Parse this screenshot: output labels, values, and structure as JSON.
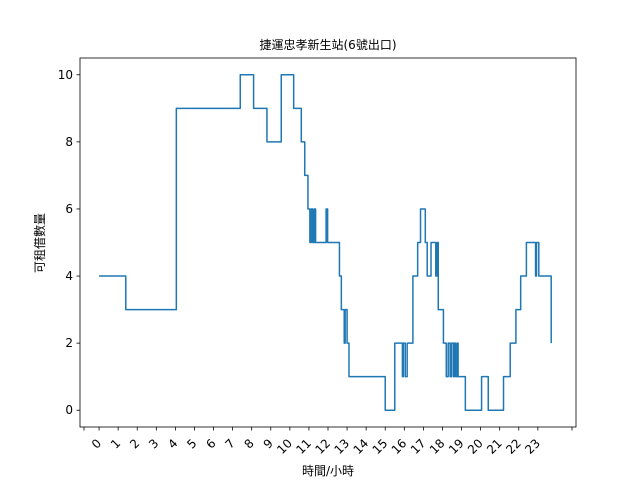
{
  "chart_data": {
    "type": "line",
    "title": "捷運忠孝新生站(6號出口)",
    "xlabel": "時間/小時",
    "ylabel": "可租借數量",
    "xlim": [
      -1,
      25
    ],
    "ylim": [
      -0.5,
      10.5
    ],
    "x_ticks": [
      0,
      1,
      2,
      3,
      4,
      5,
      6,
      7,
      8,
      9,
      10,
      11,
      12,
      13,
      14,
      15,
      16,
      17,
      18,
      19,
      20,
      21,
      22,
      23
    ],
    "x_tick_labels": [
      "0",
      "1",
      "2",
      "3",
      "4",
      "5",
      "6",
      "7",
      "8",
      "9",
      "10",
      "11",
      "12",
      "13",
      "14",
      "15",
      "16",
      "17",
      "18",
      "19",
      "20",
      "21",
      "22",
      "23"
    ],
    "y_ticks": [
      0,
      2,
      4,
      6,
      8,
      10
    ],
    "y_tick_labels": [
      "0",
      "2",
      "4",
      "6",
      "8",
      "10"
    ],
    "grid": false,
    "series": [
      {
        "color": "#1f77b4",
        "x": [
          0,
          1.4,
          1.4,
          4.05,
          4.05,
          7.4,
          7.4,
          8.1,
          8.1,
          8.8,
          8.8,
          9.55,
          9.55,
          10.2,
          10.2,
          10.6,
          10.6,
          10.78,
          10.78,
          10.95,
          10.95,
          11.05,
          11.05,
          11.12,
          11.12,
          11.2,
          11.2,
          11.28,
          11.28,
          11.35,
          11.35,
          11.45,
          11.45,
          11.9,
          11.9,
          11.98,
          11.98,
          12.05,
          12.05,
          12.6,
          12.6,
          12.7,
          12.7,
          12.85,
          12.85,
          12.9,
          12.9,
          13.0,
          13.0,
          13.1,
          13.1,
          15.0,
          15.0,
          15.5,
          15.5,
          15.9,
          15.9,
          15.95,
          15.95,
          16.05,
          16.05,
          16.15,
          16.15,
          16.45,
          16.45,
          16.7,
          16.7,
          16.85,
          16.85,
          17.1,
          17.1,
          17.2,
          17.2,
          17.4,
          17.4,
          17.65,
          17.65,
          17.72,
          17.72,
          17.78,
          17.78,
          18.05,
          18.05,
          18.2,
          18.2,
          18.3,
          18.3,
          18.4,
          18.4,
          18.48,
          18.48,
          18.58,
          18.58,
          18.63,
          18.63,
          18.7,
          18.7,
          18.78,
          18.78,
          18.82,
          18.82,
          19.2,
          19.2,
          20.05,
          20.05,
          20.4,
          20.4,
          21.2,
          21.2,
          21.55,
          21.55,
          21.85,
          21.85,
          22.1,
          22.1,
          22.4,
          22.4,
          22.8,
          22.8,
          22.88,
          22.88,
          22.93,
          22.93,
          23.05,
          23.05,
          23.15,
          23.15,
          23.7,
          23.7
        ],
        "y": [
          4,
          4,
          3,
          3,
          9,
          9,
          10,
          10,
          9,
          9,
          8,
          8,
          10,
          10,
          9,
          9,
          8,
          8,
          7,
          7,
          6,
          6,
          5,
          5,
          6,
          6,
          5,
          5,
          6,
          6,
          5,
          5,
          5,
          5,
          6,
          6,
          5,
          5,
          5,
          5,
          4,
          4,
          3,
          3,
          2,
          2,
          3,
          3,
          2,
          2,
          1,
          1,
          0,
          0,
          2,
          2,
          1,
          1,
          2,
          2,
          1,
          1,
          2,
          2,
          4,
          4,
          5,
          5,
          6,
          6,
          5,
          5,
          4,
          4,
          5,
          5,
          4,
          4,
          5,
          5,
          3,
          3,
          2,
          2,
          1,
          1,
          2,
          2,
          1,
          1,
          2,
          2,
          1,
          1,
          2,
          2,
          1,
          1,
          2,
          2,
          1,
          1,
          0,
          0,
          1,
          1,
          0,
          0,
          1,
          1,
          2,
          2,
          3,
          3,
          4,
          4,
          5,
          5,
          5,
          5,
          4,
          4,
          5,
          5,
          4,
          4,
          4,
          4,
          2
        ]
      }
    ]
  }
}
